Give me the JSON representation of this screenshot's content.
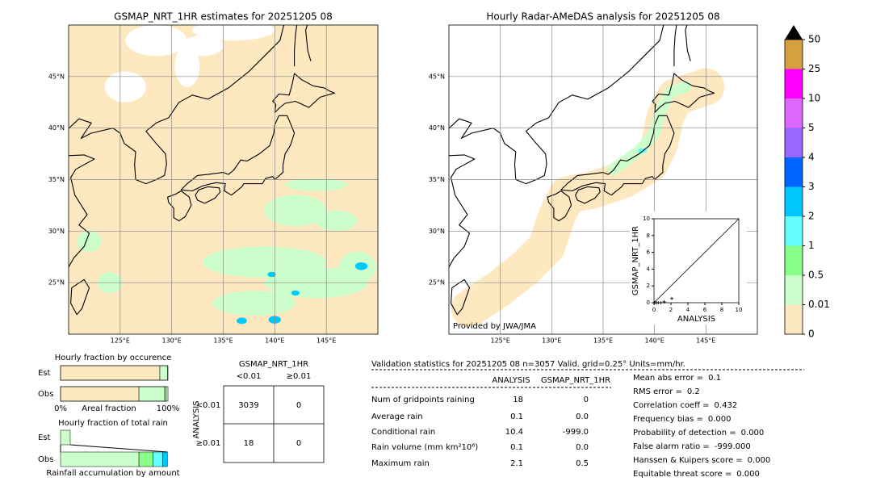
{
  "maps": [
    {
      "title": "GSMAP_NRT_1HR estimates for 20251205 08",
      "xlim": [
        120,
        150
      ],
      "ylim": [
        20,
        50
      ],
      "xticks": [
        {
          "value": 125,
          "label": "125°E"
        },
        {
          "value": 130,
          "label": "130°E"
        },
        {
          "value": 135,
          "label": "135°E"
        },
        {
          "value": 140,
          "label": "140°E"
        },
        {
          "value": 145,
          "label": "145°E"
        }
      ],
      "yticks": [
        {
          "value": 25,
          "label": "25°N"
        },
        {
          "value": 30,
          "label": "30°N"
        },
        {
          "value": 35,
          "label": "35°N"
        },
        {
          "value": 40,
          "label": "40°N"
        },
        {
          "value": 45,
          "label": "45°N"
        }
      ]
    },
    {
      "title": "Hourly Radar-AMeDAS analysis for 20251205 08",
      "xlim": [
        120,
        150
      ],
      "ylim": [
        20,
        50
      ],
      "xticks": [
        {
          "value": 125,
          "label": "125°E"
        },
        {
          "value": 130,
          "label": "130°E"
        },
        {
          "value": 135,
          "label": "135°E"
        },
        {
          "value": 140,
          "label": "140°E"
        },
        {
          "value": 145,
          "label": "145°E"
        }
      ],
      "yticks": [
        {
          "value": 25,
          "label": "25°N"
        },
        {
          "value": 30,
          "label": "30°N"
        },
        {
          "value": 35,
          "label": "35°N"
        },
        {
          "value": 40,
          "label": "40°N"
        },
        {
          "value": 45,
          "label": "45°N"
        }
      ],
      "credit": "Provided by JWA/JMA"
    }
  ],
  "colorbar": {
    "levels": [
      0,
      0.01,
      0.5,
      1,
      2,
      3,
      4,
      5,
      10,
      25,
      50
    ],
    "colors": [
      "#fde8c0",
      "#ccffcc",
      "#88ff88",
      "#66ffff",
      "#00c8ff",
      "#0066ff",
      "#9966ff",
      "#dd66ff",
      "#ff00ff",
      "#d4a040"
    ],
    "extend_color": "#000000"
  },
  "scatter": {
    "type": "scatter",
    "xlabel": "ANALYSIS",
    "ylabel": "GSMAP_NRT_1HR",
    "xlim": [
      0,
      10
    ],
    "ylim": [
      0,
      10
    ],
    "xticks": [
      0,
      2,
      4,
      6,
      8,
      10
    ],
    "yticks": [
      0,
      2,
      4,
      6,
      8,
      10
    ],
    "x": [
      0,
      0.1,
      0.3,
      0.5,
      0.8,
      1.2,
      2.1
    ],
    "y": [
      0,
      0,
      0,
      0,
      0,
      0.1,
      0.5
    ]
  },
  "occurrence": {
    "title": "Hourly fraction by occurence",
    "xlabel": "Areal fraction",
    "xticks": [
      {
        "value": 0,
        "label": "0%"
      },
      {
        "value": 100,
        "label": "100%"
      }
    ],
    "rows": [
      {
        "label": "Est",
        "segments": [
          {
            "color": "#fde8c0",
            "value": 92.5
          },
          {
            "color": "#ccffcc",
            "value": 7
          }
        ]
      },
      {
        "label": "Obs",
        "segments": [
          {
            "color": "#fde8c0",
            "value": 73
          },
          {
            "color": "#ccffcc",
            "value": 24
          },
          {
            "color": "#88ff88",
            "value": 1.5
          }
        ]
      }
    ]
  },
  "total_rain": {
    "title": "Hourly fraction of total rain",
    "xlabel": "Rainfall accumulation by amount",
    "rows": [
      {
        "label": "Est",
        "segments": [
          {
            "color": "#ccffcc",
            "value": 9
          }
        ]
      },
      {
        "label": "Obs",
        "segments": [
          {
            "color": "#ccffcc",
            "value": 73
          },
          {
            "color": "#88ff88",
            "value": 13
          },
          {
            "color": "#66ffff",
            "value": 9
          },
          {
            "color": "#00c8ff",
            "value": 4.5
          }
        ]
      }
    ]
  },
  "contingency": {
    "title": "GSMAP_NRT_1HR",
    "row_title": "ANALYSIS",
    "columns": [
      "<0.01",
      "≥0.01"
    ],
    "rows": [
      "<0.01",
      "≥0.01"
    ],
    "cells": [
      [
        3039,
        0
      ],
      [
        18,
        0
      ]
    ]
  },
  "validation": {
    "title": "Validation statistics for 20251205 08  n=3057 Valid. grid=0.25° Units=mm/hr.",
    "columns": [
      "ANALYSIS",
      "GSMAP_NRT_1HR"
    ],
    "rows": [
      {
        "label": "Num of gridpoints raining",
        "values": [
          "18",
          "0"
        ]
      },
      {
        "label": "Average rain",
        "values": [
          "0.1",
          "0.0"
        ]
      },
      {
        "label": "Conditional rain",
        "values": [
          "10.4",
          "-999.0"
        ]
      },
      {
        "label": "Rain volume (mm km²10⁶)",
        "values": [
          "0.1",
          "0.0"
        ]
      },
      {
        "label": "Maximum rain",
        "values": [
          "2.1",
          "0.5"
        ]
      }
    ],
    "scores": [
      {
        "label": "Mean abs error =",
        "value": "0.1"
      },
      {
        "label": "RMS error =",
        "value": "0.2"
      },
      {
        "label": "Correlation coeff =",
        "value": "0.432"
      },
      {
        "label": "Frequency bias =",
        "value": "0.000"
      },
      {
        "label": "Probability of detection =",
        "value": "0.000"
      },
      {
        "label": "False alarm ratio =",
        "value": "-999.000"
      },
      {
        "label": "Hanssen & Kuipers score =",
        "value": "0.000"
      },
      {
        "label": "Equitable threat score =",
        "value": "0.000"
      }
    ]
  }
}
